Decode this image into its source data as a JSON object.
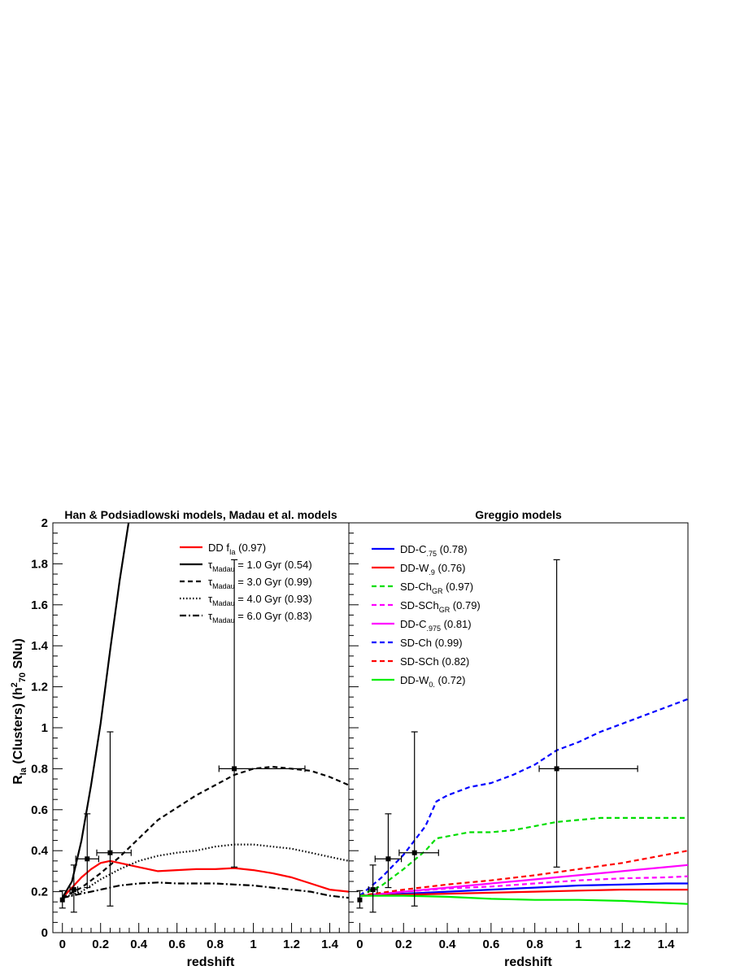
{
  "chart_data": [
    {
      "type": "line",
      "title": "Han & Podsiadlowski models, Madau et al. models",
      "xlabel": "redshift",
      "ylabel": "R_Ia (Clusters) (h^2_70 SNu)",
      "xlim": [
        -0.05,
        1.5
      ],
      "ylim": [
        0,
        2
      ],
      "x_ticks": [
        "0",
        "0.2",
        "0.4",
        "0.6",
        "0.8",
        "1",
        "1.2",
        "1.4"
      ],
      "y_ticks": [
        "0",
        "0.2",
        "0.4",
        "0.6",
        "0.8",
        "1",
        "1.2",
        "1.4",
        "1.6",
        "1.8",
        "2"
      ],
      "legend_position": "top-right",
      "series": [
        {
          "name": "DD f_Ia (0.97)",
          "legend": {
            "main": "DD f",
            "sub": "Ia",
            "tail": " (0.97)"
          },
          "color": "#ff0000",
          "dash": "solid",
          "width": 2.2,
          "x": [
            0,
            0.05,
            0.1,
            0.15,
            0.2,
            0.25,
            0.3,
            0.4,
            0.5,
            0.6,
            0.7,
            0.8,
            0.9,
            1.0,
            1.1,
            1.2,
            1.3,
            1.4,
            1.5
          ],
          "y": [
            0.17,
            0.22,
            0.27,
            0.31,
            0.34,
            0.35,
            0.34,
            0.32,
            0.3,
            0.305,
            0.31,
            0.31,
            0.315,
            0.305,
            0.29,
            0.27,
            0.24,
            0.21,
            0.2
          ]
        },
        {
          "name": "τ_Madau = 1.0 Gyr (0.54)",
          "legend": {
            "main": "τ",
            "sub": "Madau",
            "tail": " = 1.0 Gyr (0.54)"
          },
          "color": "#000000",
          "dash": "solid",
          "width": 2.2,
          "x": [
            0,
            0.05,
            0.1,
            0.15,
            0.2,
            0.25,
            0.3,
            0.35
          ],
          "y": [
            0.17,
            0.25,
            0.45,
            0.72,
            1.02,
            1.38,
            1.72,
            2.02
          ]
        },
        {
          "name": "τ_Madau = 3.0 Gyr (0.99)",
          "legend": {
            "main": "τ",
            "sub": "Madau",
            "tail": " = 3.0 Gyr (0.99)"
          },
          "color": "#000000",
          "dash": "6,4",
          "width": 2.2,
          "x": [
            0,
            0.1,
            0.2,
            0.3,
            0.4,
            0.5,
            0.6,
            0.7,
            0.8,
            0.9,
            1.0,
            1.1,
            1.2,
            1.3,
            1.4,
            1.5
          ],
          "y": [
            0.17,
            0.22,
            0.29,
            0.37,
            0.46,
            0.55,
            0.61,
            0.67,
            0.72,
            0.77,
            0.8,
            0.81,
            0.8,
            0.79,
            0.76,
            0.72
          ]
        },
        {
          "name": "τ_Madau = 4.0 Gyr (0.93)",
          "legend": {
            "main": "τ",
            "sub": "Madau",
            "tail": " = 4.0 Gyr (0.93)"
          },
          "color": "#000000",
          "dash": "1.5,2.5",
          "width": 2.2,
          "x": [
            0,
            0.1,
            0.2,
            0.3,
            0.4,
            0.5,
            0.6,
            0.7,
            0.8,
            0.9,
            1.0,
            1.1,
            1.2,
            1.3,
            1.4,
            1.5
          ],
          "y": [
            0.17,
            0.2,
            0.26,
            0.31,
            0.35,
            0.375,
            0.39,
            0.4,
            0.42,
            0.43,
            0.43,
            0.42,
            0.41,
            0.39,
            0.37,
            0.35
          ]
        },
        {
          "name": "τ_Madau = 6.0 Gyr (0.83)",
          "legend": {
            "main": "τ",
            "sub": "Madau",
            "tail": " = 6.0 Gyr (0.83)"
          },
          "color": "#000000",
          "dash": "8,3,2,3",
          "width": 2.2,
          "x": [
            0,
            0.1,
            0.2,
            0.3,
            0.4,
            0.5,
            0.6,
            0.7,
            0.8,
            0.9,
            1.0,
            1.1,
            1.2,
            1.3,
            1.4,
            1.5
          ],
          "y": [
            0.17,
            0.19,
            0.21,
            0.23,
            0.24,
            0.245,
            0.24,
            0.24,
            0.24,
            0.235,
            0.23,
            0.22,
            0.21,
            0.2,
            0.18,
            0.17
          ]
        }
      ],
      "data_points": [
        {
          "x": 0.0,
          "y": 0.16,
          "xerr": [
            0.0,
            0.0
          ],
          "yerr": [
            0.04,
            0.045
          ]
        },
        {
          "x": 0.06,
          "y": 0.21,
          "xerr": [
            0.02,
            0.02
          ],
          "yerr": [
            0.11,
            0.12
          ]
        },
        {
          "x": 0.13,
          "y": 0.36,
          "xerr": [
            0.06,
            0.06
          ],
          "yerr": [
            0.14,
            0.22
          ]
        },
        {
          "x": 0.25,
          "y": 0.39,
          "xerr": [
            0.07,
            0.11
          ],
          "yerr": [
            0.26,
            0.59
          ]
        },
        {
          "x": 0.9,
          "y": 0.8,
          "xerr": [
            0.08,
            0.37
          ],
          "yerr": [
            0.48,
            1.02
          ]
        }
      ]
    },
    {
      "type": "line",
      "title": "Greggio models",
      "xlabel": "redshift",
      "ylabel": "",
      "xlim": [
        -0.05,
        1.5
      ],
      "ylim": [
        0,
        2
      ],
      "x_ticks": [
        "0",
        "0.2",
        "0.4",
        "0.6",
        "0.8",
        "1",
        "1.2",
        "1.4"
      ],
      "legend_position": "top-left",
      "series": [
        {
          "name": "DD-C.75 (0.78)",
          "legend": {
            "main": "DD-C",
            "sub": ".75",
            "tail": " (0.78)"
          },
          "color": "#0000ff",
          "dash": "solid",
          "width": 2.2,
          "x": [
            0,
            0.2,
            0.4,
            0.6,
            0.8,
            1.0,
            1.2,
            1.4,
            1.5
          ],
          "y": [
            0.18,
            0.19,
            0.2,
            0.21,
            0.22,
            0.23,
            0.235,
            0.24,
            0.24
          ]
        },
        {
          "name": "DD-W.9 (0.76)",
          "legend": {
            "main": "DD-W",
            "sub": ".9",
            "tail": " (0.76)"
          },
          "color": "#ff0000",
          "dash": "solid",
          "width": 2.2,
          "x": [
            0,
            0.2,
            0.4,
            0.6,
            0.8,
            1.0,
            1.2,
            1.4,
            1.5
          ],
          "y": [
            0.18,
            0.185,
            0.19,
            0.195,
            0.2,
            0.205,
            0.21,
            0.21,
            0.21
          ]
        },
        {
          "name": "SD-ChGR (0.97)",
          "legend": {
            "main": "SD-Ch",
            "sub": "GR",
            "tail": " (0.97)"
          },
          "color": "#00dd00",
          "dash": "6,4",
          "width": 2.2,
          "x": [
            0,
            0.1,
            0.2,
            0.3,
            0.35,
            0.4,
            0.5,
            0.6,
            0.7,
            0.8,
            0.9,
            1.0,
            1.1,
            1.2,
            1.3,
            1.4,
            1.5
          ],
          "y": [
            0.18,
            0.23,
            0.31,
            0.4,
            0.46,
            0.47,
            0.49,
            0.49,
            0.5,
            0.52,
            0.54,
            0.55,
            0.56,
            0.56,
            0.56,
            0.56,
            0.56
          ]
        },
        {
          "name": "SD-SChGR (0.79)",
          "legend": {
            "main": "SD-SCh",
            "sub": "GR",
            "tail": " (0.79)"
          },
          "color": "#ff00ff",
          "dash": "6,4",
          "width": 2.2,
          "x": [
            0,
            0.2,
            0.4,
            0.6,
            0.8,
            1.0,
            1.2,
            1.4,
            1.5
          ],
          "y": [
            0.18,
            0.2,
            0.215,
            0.225,
            0.24,
            0.255,
            0.265,
            0.27,
            0.275
          ]
        },
        {
          "name": "DD-C.975 (0.81)",
          "legend": {
            "main": "DD-C",
            "sub": ".975",
            "tail": " (0.81)"
          },
          "color": "#ff00ff",
          "dash": "solid",
          "width": 2.2,
          "x": [
            0,
            0.2,
            0.4,
            0.6,
            0.8,
            1.0,
            1.2,
            1.4,
            1.5
          ],
          "y": [
            0.18,
            0.2,
            0.22,
            0.24,
            0.26,
            0.28,
            0.3,
            0.32,
            0.33
          ]
        },
        {
          "name": "SD-Ch (0.99)",
          "legend": {
            "main": "SD-Ch",
            "sub": "",
            "tail": " (0.99)"
          },
          "color": "#0000ff",
          "dash": "6,4",
          "width": 2.2,
          "x": [
            0,
            0.1,
            0.2,
            0.3,
            0.35,
            0.4,
            0.5,
            0.6,
            0.7,
            0.8,
            0.9,
            1.0,
            1.1,
            1.2,
            1.3,
            1.4,
            1.5
          ],
          "y": [
            0.18,
            0.27,
            0.38,
            0.52,
            0.64,
            0.67,
            0.71,
            0.73,
            0.77,
            0.82,
            0.89,
            0.93,
            0.98,
            1.02,
            1.06,
            1.1,
            1.14
          ]
        },
        {
          "name": "SD-SCh (0.82)",
          "legend": {
            "main": "SD-SCh",
            "sub": "",
            "tail": " (0.82)"
          },
          "color": "#ff0000",
          "dash": "6,4",
          "width": 2.2,
          "x": [
            0,
            0.2,
            0.4,
            0.6,
            0.8,
            1.0,
            1.2,
            1.4,
            1.5
          ],
          "y": [
            0.18,
            0.21,
            0.235,
            0.255,
            0.28,
            0.31,
            0.34,
            0.38,
            0.4
          ]
        },
        {
          "name": "DD-W0. (0.72)",
          "legend": {
            "main": "DD-W",
            "sub": "0.",
            "tail": " (0.72)"
          },
          "color": "#00ee00",
          "dash": "solid",
          "width": 2.2,
          "x": [
            0,
            0.2,
            0.4,
            0.6,
            0.8,
            1.0,
            1.2,
            1.4,
            1.5
          ],
          "y": [
            0.18,
            0.18,
            0.175,
            0.165,
            0.16,
            0.16,
            0.155,
            0.145,
            0.14
          ]
        }
      ],
      "data_points": [
        {
          "x": 0.0,
          "y": 0.16,
          "xerr": [
            0.0,
            0.0
          ],
          "yerr": [
            0.04,
            0.045
          ]
        },
        {
          "x": 0.06,
          "y": 0.21,
          "xerr": [
            0.02,
            0.02
          ],
          "yerr": [
            0.11,
            0.12
          ]
        },
        {
          "x": 0.13,
          "y": 0.36,
          "xerr": [
            0.06,
            0.06
          ],
          "yerr": [
            0.14,
            0.22
          ]
        },
        {
          "x": 0.25,
          "y": 0.39,
          "xerr": [
            0.07,
            0.11
          ],
          "yerr": [
            0.26,
            0.59
          ]
        },
        {
          "x": 0.9,
          "y": 0.8,
          "xerr": [
            0.08,
            0.37
          ],
          "yerr": [
            0.48,
            1.02
          ]
        }
      ]
    }
  ]
}
